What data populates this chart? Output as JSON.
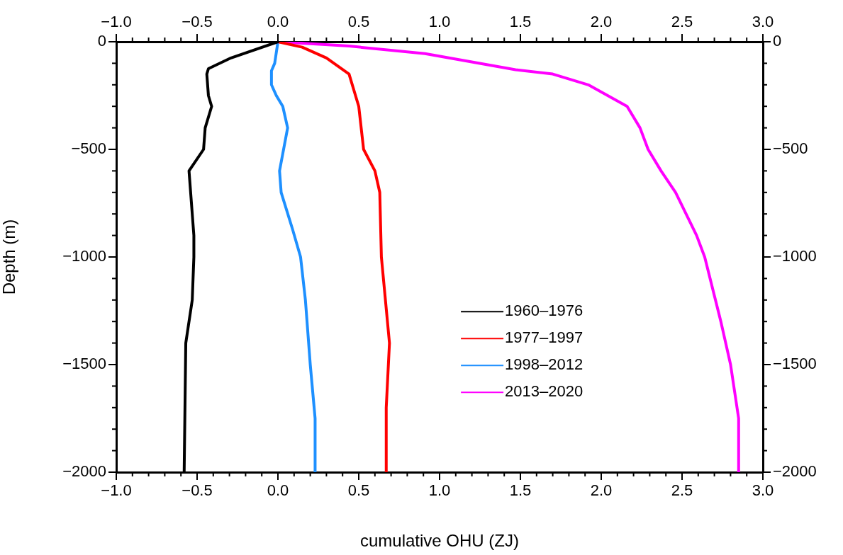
{
  "chart_data": {
    "type": "line",
    "xlabel": "cumulative OHU (ZJ)",
    "ylabel": "Depth (m)",
    "xlim": [
      -1,
      3
    ],
    "ylim": [
      -2000,
      0
    ],
    "x2lim": [
      -1,
      3
    ],
    "y2lim": [
      -2000,
      0
    ],
    "xticks": [
      {
        "value": -1,
        "label": "−1.0"
      },
      {
        "value": -0.9,
        "label": null
      },
      {
        "value": -0.8,
        "label": null
      },
      {
        "value": -0.7,
        "label": null
      },
      {
        "value": -0.6,
        "label": null
      },
      {
        "value": -0.5,
        "label": "−0.5"
      },
      {
        "value": -0.4,
        "label": null
      },
      {
        "value": -0.3,
        "label": null
      },
      {
        "value": -0.2,
        "label": null
      },
      {
        "value": -0.1,
        "label": null
      },
      {
        "value": 0,
        "label": "0.0"
      },
      {
        "value": 0.1,
        "label": null
      },
      {
        "value": 0.2,
        "label": null
      },
      {
        "value": 0.3,
        "label": null
      },
      {
        "value": 0.4,
        "label": null
      },
      {
        "value": 0.5,
        "label": "0.5"
      },
      {
        "value": 0.6,
        "label": null
      },
      {
        "value": 0.7,
        "label": null
      },
      {
        "value": 0.8,
        "label": null
      },
      {
        "value": 0.9,
        "label": null
      },
      {
        "value": 1,
        "label": "1.0"
      },
      {
        "value": 1.1,
        "label": null
      },
      {
        "value": 1.2,
        "label": null
      },
      {
        "value": 1.3,
        "label": null
      },
      {
        "value": 1.4,
        "label": null
      },
      {
        "value": 1.5,
        "label": "1.5"
      },
      {
        "value": 1.6,
        "label": null
      },
      {
        "value": 1.7,
        "label": null
      },
      {
        "value": 1.8,
        "label": null
      },
      {
        "value": 1.9,
        "label": null
      },
      {
        "value": 2,
        "label": "2.0"
      },
      {
        "value": 2.1,
        "label": null
      },
      {
        "value": 2.2,
        "label": null
      },
      {
        "value": 2.3,
        "label": null
      },
      {
        "value": 2.4,
        "label": null
      },
      {
        "value": 2.5,
        "label": "2.5"
      },
      {
        "value": 2.6,
        "label": null
      },
      {
        "value": 2.7,
        "label": null
      },
      {
        "value": 2.8,
        "label": null
      },
      {
        "value": 2.9,
        "label": null
      },
      {
        "value": 3,
        "label": "3.0"
      }
    ],
    "x2ticks": [
      {
        "value": -1,
        "label": "−1.0"
      },
      {
        "value": -0.9,
        "label": null
      },
      {
        "value": -0.8,
        "label": null
      },
      {
        "value": -0.7,
        "label": null
      },
      {
        "value": -0.6,
        "label": null
      },
      {
        "value": -0.5,
        "label": "−0.5"
      },
      {
        "value": -0.4,
        "label": null
      },
      {
        "value": -0.3,
        "label": null
      },
      {
        "value": -0.2,
        "label": null
      },
      {
        "value": -0.1,
        "label": null
      },
      {
        "value": 0,
        "label": "0.0"
      },
      {
        "value": 0.1,
        "label": null
      },
      {
        "value": 0.2,
        "label": null
      },
      {
        "value": 0.3,
        "label": null
      },
      {
        "value": 0.4,
        "label": null
      },
      {
        "value": 0.5,
        "label": "0.5"
      },
      {
        "value": 0.6,
        "label": null
      },
      {
        "value": 0.7,
        "label": null
      },
      {
        "value": 0.8,
        "label": null
      },
      {
        "value": 0.9,
        "label": null
      },
      {
        "value": 1,
        "label": "1.0"
      },
      {
        "value": 1.1,
        "label": null
      },
      {
        "value": 1.2,
        "label": null
      },
      {
        "value": 1.3,
        "label": null
      },
      {
        "value": 1.4,
        "label": null
      },
      {
        "value": 1.5,
        "label": "1.5"
      },
      {
        "value": 1.6,
        "label": null
      },
      {
        "value": 1.7,
        "label": null
      },
      {
        "value": 1.8,
        "label": null
      },
      {
        "value": 1.9,
        "label": null
      },
      {
        "value": 2,
        "label": "2.0"
      },
      {
        "value": 2.1,
        "label": null
      },
      {
        "value": 2.2,
        "label": null
      },
      {
        "value": 2.3,
        "label": null
      },
      {
        "value": 2.4,
        "label": null
      },
      {
        "value": 2.5,
        "label": "2.5"
      },
      {
        "value": 2.6,
        "label": null
      },
      {
        "value": 2.7,
        "label": null
      },
      {
        "value": 2.8,
        "label": null
      },
      {
        "value": 2.9,
        "label": null
      },
      {
        "value": 3,
        "label": "3.0"
      }
    ],
    "yticks": [
      {
        "value": -2000,
        "label": "−2000"
      },
      {
        "value": -1900,
        "label": null
      },
      {
        "value": -1800,
        "label": null
      },
      {
        "value": -1700,
        "label": null
      },
      {
        "value": -1600,
        "label": null
      },
      {
        "value": -1500,
        "label": "−1500"
      },
      {
        "value": -1400,
        "label": null
      },
      {
        "value": -1300,
        "label": null
      },
      {
        "value": -1200,
        "label": null
      },
      {
        "value": -1100,
        "label": null
      },
      {
        "value": -1000,
        "label": "−1000"
      },
      {
        "value": -900,
        "label": null
      },
      {
        "value": -800,
        "label": null
      },
      {
        "value": -700,
        "label": null
      },
      {
        "value": -600,
        "label": null
      },
      {
        "value": -500,
        "label": "−500"
      },
      {
        "value": -400,
        "label": null
      },
      {
        "value": -300,
        "label": null
      },
      {
        "value": -200,
        "label": null
      },
      {
        "value": -100,
        "label": null
      },
      0
    ],
    "y2ticks": [
      {
        "value": -2000,
        "label": "−2000"
      },
      {
        "value": -1900,
        "label": null
      },
      {
        "value": -1800,
        "label": null
      },
      {
        "value": -1700,
        "label": null
      },
      {
        "value": -1600,
        "label": null
      },
      {
        "value": -1500,
        "label": "−1500"
      },
      {
        "value": -1400,
        "label": null
      },
      {
        "value": -1300,
        "label": null
      },
      {
        "value": -1200,
        "label": null
      },
      {
        "value": -1100,
        "label": null
      },
      {
        "value": -1000,
        "label": "−1000"
      },
      {
        "value": -900,
        "label": null
      },
      {
        "value": -800,
        "label": null
      },
      {
        "value": -700,
        "label": null
      },
      {
        "value": -600,
        "label": null
      },
      {
        "value": -500,
        "label": "−500"
      },
      {
        "value": -400,
        "label": null
      },
      {
        "value": -300,
        "label": null
      },
      {
        "value": -200,
        "label": null
      },
      {
        "value": -100,
        "label": null
      },
      0
    ],
    "legend": "bottom",
    "marker": "none",
    "line_style": "solid",
    "series": [
      {
        "name": "1960–1976",
        "color": "#000000",
        "x": [
          0,
          -0.29,
          -0.43,
          -0.44,
          -0.43,
          -0.41,
          -0.45,
          -0.46,
          -0.55,
          -0.52,
          -0.52,
          -0.53,
          -0.57,
          -0.58
        ],
        "values": [
          0,
          -75,
          -125,
          -150,
          -250,
          -300,
          -400,
          -500,
          -600,
          -900,
          -1000,
          -1200,
          -1400,
          -2000
        ]
      },
      {
        "name": "1977–1997",
        "color": "#ff0000",
        "x": [
          0,
          0.15,
          0.3,
          0.44,
          0.5,
          0.53,
          0.6,
          0.63,
          0.64,
          0.69,
          0.67,
          0.67
        ],
        "values": [
          0,
          -25,
          -75,
          -150,
          -300,
          -500,
          -600,
          -700,
          -1000,
          -1400,
          -1700,
          -2000
        ]
      },
      {
        "name": "1998–2012",
        "color": "#1e90ff",
        "x": [
          0,
          -0.02,
          -0.04,
          -0.04,
          -0.01,
          0.03,
          0.06,
          0.01,
          0.02,
          0.09,
          0.14,
          0.17,
          0.2,
          0.23,
          0.23
        ],
        "values": [
          0,
          -100,
          -135,
          -200,
          -250,
          -300,
          -400,
          -600,
          -700,
          -870,
          -1000,
          -1200,
          -1500,
          -1750,
          -2000
        ]
      },
      {
        "name": "2013–2020",
        "color": "#ff00ff",
        "x": [
          0,
          0.44,
          0.91,
          1.47,
          1.7,
          1.92,
          2.16,
          2.24,
          2.29,
          2.37,
          2.46,
          2.59,
          2.64,
          2.74,
          2.8,
          2.85,
          2.85
        ],
        "values": [
          0,
          -20,
          -55,
          -130,
          -150,
          -200,
          -300,
          -400,
          -500,
          -600,
          -700,
          -900,
          -1000,
          -1300,
          -1500,
          -1750,
          -2000
        ]
      }
    ]
  }
}
